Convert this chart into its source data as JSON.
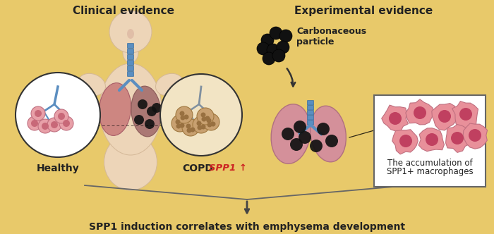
{
  "background_color": "#E8C96A",
  "title_clinical": "Clinical evidence",
  "title_experimental": "Experimental evidence",
  "label_healthy": "Healthy",
  "label_copd": "COPD",
  "label_spp1": "SPP1 ↑",
  "label_carbonaceous": "Carbonaceous\nparticle",
  "label_accumulation_1": "The accumulation of",
  "label_accumulation_2": "SPP1+ macrophages",
  "label_bottom": "SPP1 induction correlates with emphysema development",
  "fig_width": 7.0,
  "fig_height": 3.32,
  "dpi": 100
}
